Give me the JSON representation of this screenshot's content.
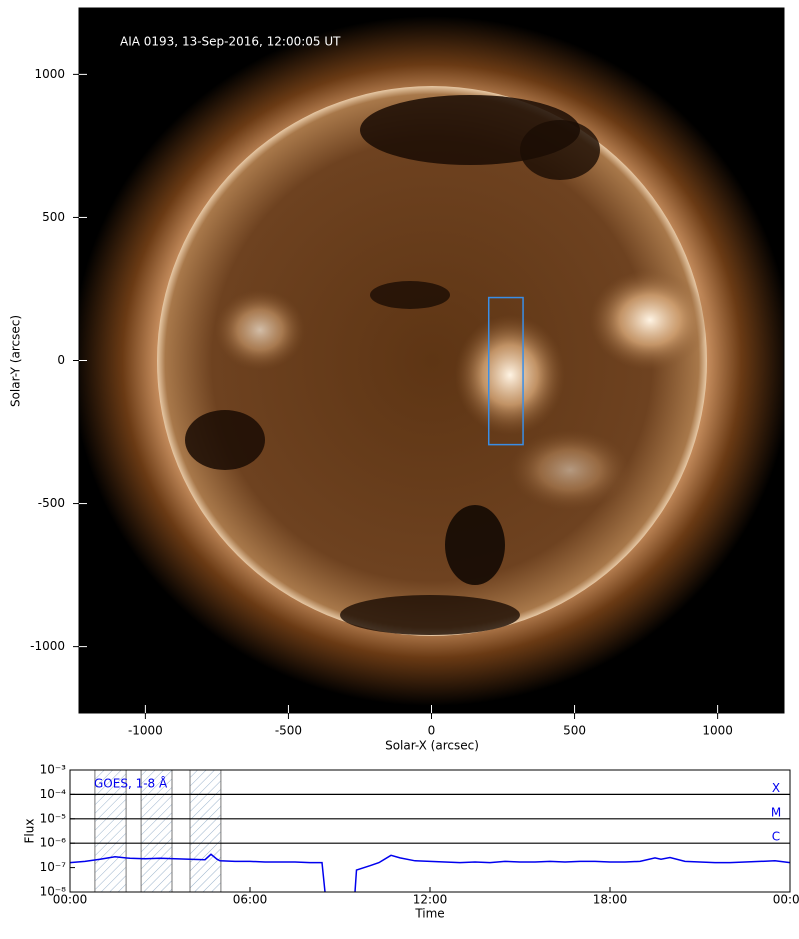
{
  "chart_data": [
    {
      "type": "image",
      "title": "AIA 0193, 13-Sep-2016, 12:00:05 UT",
      "xlabel": "Solar-X (arcsec)",
      "ylabel": "Solar-Y (arcsec)",
      "xlim": [
        -1232,
        1232
      ],
      "ylim": [
        -1232,
        1232
      ],
      "xticks": [
        -1000,
        -500,
        0,
        500,
        1000
      ],
      "yticks": [
        -1000,
        -500,
        0,
        500,
        1000
      ],
      "box": {
        "x": [
          200,
          320
        ],
        "y": [
          -294,
          220
        ],
        "color": "#3a8ee6"
      }
    },
    {
      "type": "line",
      "xlabel": "Time",
      "ylabel": "Flux",
      "log_y": true,
      "xlim": [
        0,
        24
      ],
      "ylim": [
        1e-08,
        0.001
      ],
      "xticks": [
        {
          "value": 0,
          "label": "00:00"
        },
        {
          "value": 6,
          "label": "06:00"
        },
        {
          "value": 12,
          "label": "12:00"
        },
        {
          "value": 18,
          "label": "18:00"
        },
        {
          "value": 24,
          "label": "00:00"
        }
      ],
      "yticks": [
        {
          "value": 1e-08,
          "label": "10⁻⁸"
        },
        {
          "value": 1e-07,
          "label": "10⁻⁷"
        },
        {
          "value": 1e-06,
          "label": "10⁻⁶"
        },
        {
          "value": 1e-05,
          "label": "10⁻⁵"
        },
        {
          "value": 0.0001,
          "label": "10⁻⁴"
        },
        {
          "value": 0.001,
          "label": "10⁻³"
        }
      ],
      "flare_levels": [
        {
          "value": 0.0001,
          "label": "X"
        },
        {
          "value": 1e-05,
          "label": "M"
        },
        {
          "value": 1e-06,
          "label": "C"
        }
      ],
      "shaded_intervals": [
        [
          0.83,
          1.87
        ],
        [
          2.37,
          3.4
        ],
        [
          4.0,
          5.03
        ]
      ],
      "x": [
        0,
        0.5,
        1,
        1.5,
        2,
        2.5,
        3,
        3.5,
        4,
        4.5,
        4.7,
        4.9,
        5,
        5.5,
        6,
        6.5,
        7,
        7.5,
        8,
        8.4,
        8.5,
        9,
        9.5,
        9.55,
        10,
        10.3,
        10.7,
        11,
        11.5,
        12,
        12.5,
        13,
        13.5,
        14,
        14.5,
        15,
        15.5,
        16,
        16.5,
        17,
        17.5,
        18,
        18.5,
        19,
        19.5,
        19.7,
        20,
        20.5,
        21,
        21.5,
        22,
        22.5,
        23,
        23.5,
        24
      ],
      "series": [
        {
          "name": "GOES, 1-8 Å",
          "color": "#0000ee",
          "values": [
            1.6e-07,
            1.8e-07,
            2.2e-07,
            2.8e-07,
            2.4e-07,
            2.3e-07,
            2.4e-07,
            2.3e-07,
            2.2e-07,
            2.1e-07,
            3.5e-07,
            2.2e-07,
            1.9e-07,
            1.8e-07,
            1.8e-07,
            1.7e-07,
            1.7e-07,
            1.7e-07,
            1.6e-07,
            1.6e-07,
            1e-08,
            null,
            1e-08,
            8e-08,
            1.2e-07,
            1.6e-07,
            3.2e-07,
            2.5e-07,
            1.9e-07,
            1.8e-07,
            1.7e-07,
            1.6e-07,
            1.7e-07,
            1.6e-07,
            1.8e-07,
            1.7e-07,
            1.7e-07,
            1.8e-07,
            1.7e-07,
            1.8e-07,
            1.8e-07,
            1.7e-07,
            1.7e-07,
            1.8e-07,
            2.5e-07,
            2.2e-07,
            2.6e-07,
            1.8e-07,
            1.7e-07,
            1.6e-07,
            1.6e-07,
            1.7e-07,
            1.8e-07,
            1.9e-07,
            1.6e-07
          ]
        }
      ]
    }
  ]
}
